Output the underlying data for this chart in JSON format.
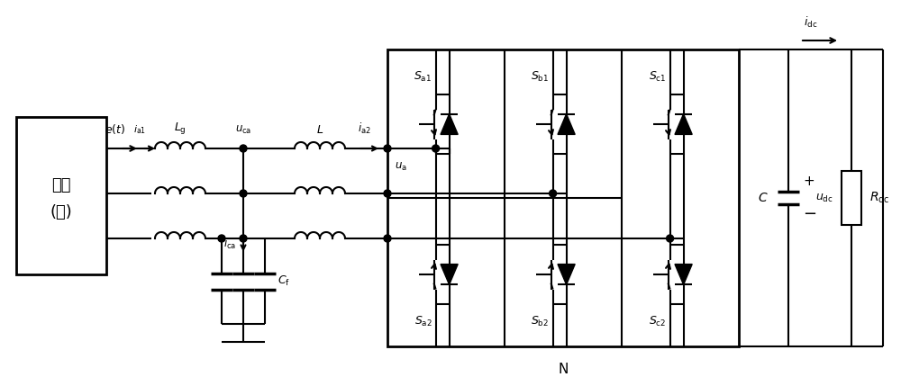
{
  "bg_color": "#ffffff",
  "line_color": "#000000",
  "lw": 1.5,
  "fig_width": 10.0,
  "fig_height": 4.29,
  "dpi": 100
}
